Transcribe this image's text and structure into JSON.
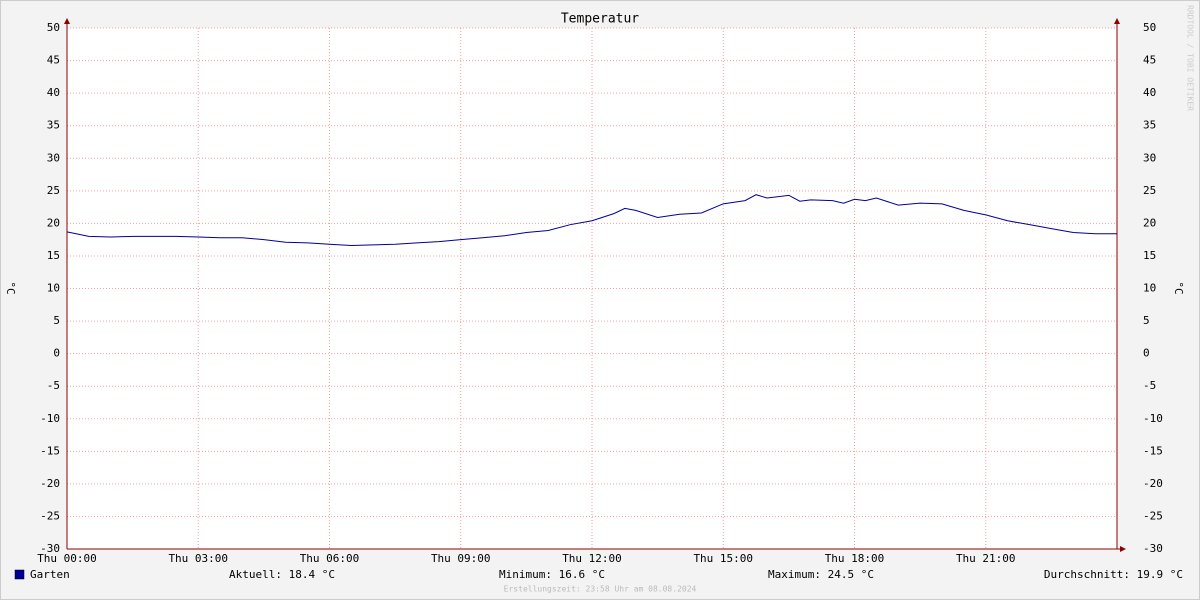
{
  "chart_data": {
    "type": "line",
    "title": "Temperatur",
    "ylabel": "°C",
    "y2label": "°C",
    "watermark": "RRDTOOL / TOBI OETIKER",
    "x": [
      0,
      0.5,
      1,
      1.5,
      2,
      2.5,
      3,
      3.5,
      4,
      4.5,
      5,
      5.5,
      6,
      6.5,
      7,
      7.5,
      8,
      8.5,
      9,
      9.5,
      10,
      10.5,
      11,
      11.5,
      12,
      12.5,
      12.75,
      13,
      13.5,
      14,
      14.5,
      15,
      15.5,
      15.75,
      16,
      16.5,
      16.75,
      17,
      17.5,
      17.75,
      18,
      18.25,
      18.5,
      19,
      19.5,
      20,
      20.5,
      21,
      21.5,
      22,
      22.5,
      23,
      23.5,
      24
    ],
    "series": [
      {
        "name": "Garten",
        "color": "#000099",
        "values": [
          18.7,
          18.0,
          17.9,
          18.0,
          18.0,
          18.0,
          17.9,
          17.8,
          17.8,
          17.5,
          17.1,
          17.0,
          16.8,
          16.6,
          16.7,
          16.8,
          17.0,
          17.2,
          17.5,
          17.8,
          18.1,
          18.6,
          18.9,
          19.8,
          20.4,
          21.5,
          22.3,
          22.0,
          20.9,
          21.4,
          21.6,
          23.0,
          23.5,
          24.4,
          23.9,
          24.3,
          23.4,
          23.6,
          23.5,
          23.1,
          23.7,
          23.5,
          23.9,
          22.8,
          23.1,
          23.0,
          22.0,
          21.3,
          20.4,
          19.8,
          19.2,
          18.6,
          18.4,
          18.4
        ]
      }
    ],
    "xlim": [
      0,
      24
    ],
    "xticks": [
      {
        "value": 0,
        "label": "Thu 00:00"
      },
      {
        "value": 3,
        "label": "Thu 03:00"
      },
      {
        "value": 6,
        "label": "Thu 06:00"
      },
      {
        "value": 9,
        "label": "Thu 09:00"
      },
      {
        "value": 12,
        "label": "Thu 12:00"
      },
      {
        "value": 15,
        "label": "Thu 15:00"
      },
      {
        "value": 18,
        "label": "Thu 18:00"
      },
      {
        "value": 21,
        "label": "Thu 21:00"
      }
    ],
    "ylim": [
      -30,
      50
    ],
    "yticks": [
      -30,
      -25,
      -20,
      -15,
      -10,
      -5,
      0,
      5,
      10,
      15,
      20,
      25,
      30,
      35,
      40,
      45,
      50
    ],
    "grid": true,
    "stats": [
      "Aktuell: 18.4 °C",
      "Minimum: 16.6 °C",
      "Maximum: 24.5 °C",
      "Durchschnitt: 19.9 °C"
    ],
    "footer": "Erstellungszeit: 23:58 Uhr am 08.08.2024"
  }
}
